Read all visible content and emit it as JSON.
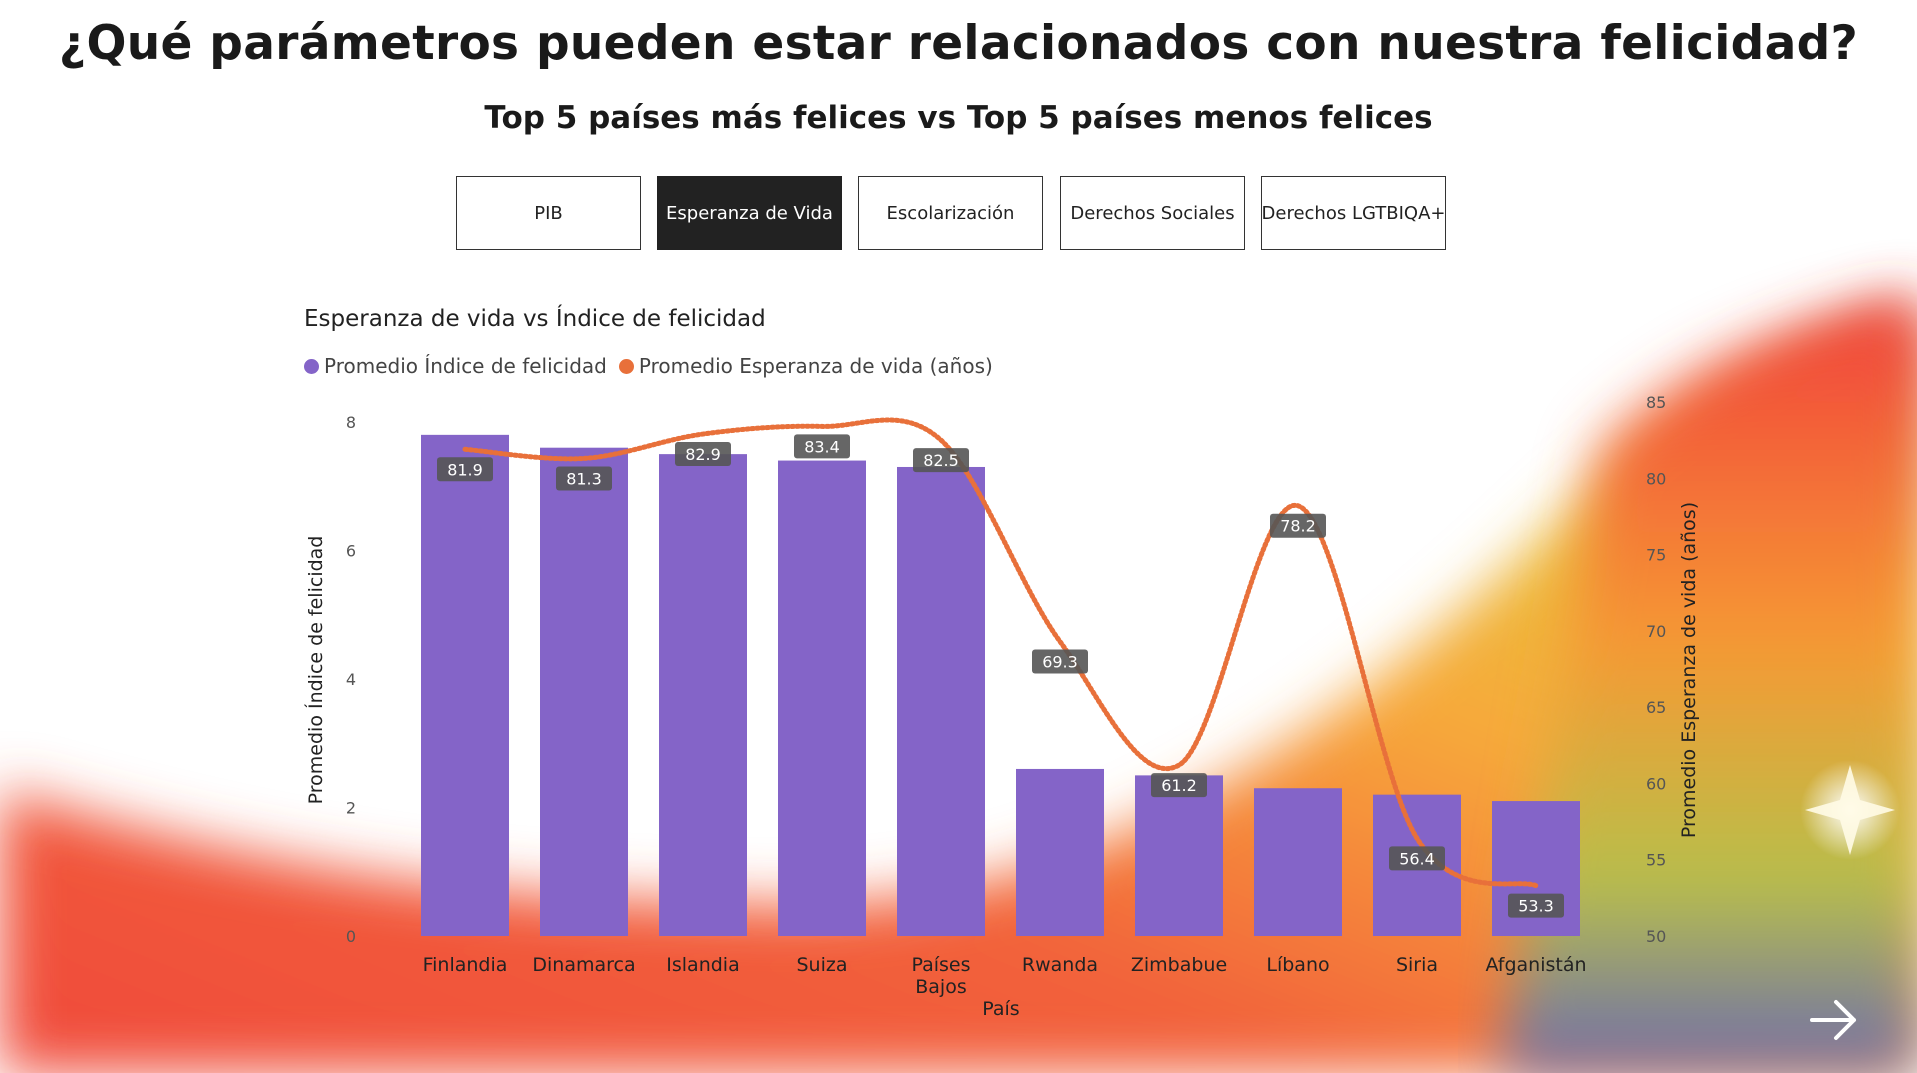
{
  "page": {
    "title": "¿Qué parámetros pueden estar relacionados con nuestra felicidad?",
    "subtitle": "Top 5 países más felices vs Top 5 países menos felices"
  },
  "tabs": [
    {
      "label": "PIB",
      "active": false
    },
    {
      "label": "Esperanza de Vida",
      "active": true
    },
    {
      "label": "Escolarización",
      "active": false
    },
    {
      "label": "Derechos Sociales",
      "active": false
    },
    {
      "label": "Derechos LGTBIQA+",
      "active": false
    }
  ],
  "next_button": {
    "icon": "arrow-right-icon"
  },
  "chart_data": {
    "type": "bar",
    "title": "Esperanza de vida vs Índice de felicidad",
    "xlabel": "País",
    "ylabel": "Promedio Índice de felicidad",
    "y2label": "Promedio Esperanza de vida (años)",
    "categories": [
      "Finlandia",
      "Dinamarca",
      "Islandia",
      "Suiza",
      "Países Bajos",
      "Rwanda",
      "Zimbabue",
      "Líbano",
      "Siria",
      "Afganistán"
    ],
    "series": [
      {
        "name": "Promedio Índice de felicidad",
        "type": "bar",
        "axis": "left",
        "color": "#8464c8",
        "values": [
          7.8,
          7.6,
          7.5,
          7.4,
          7.3,
          2.6,
          2.5,
          2.3,
          2.2,
          2.1
        ]
      },
      {
        "name": "Promedio Esperanza de vida (años)",
        "type": "line",
        "axis": "right",
        "color": "#e8703a",
        "values": [
          81.9,
          81.3,
          82.9,
          83.4,
          82.5,
          69.3,
          61.2,
          78.2,
          56.4,
          53.3
        ],
        "labels": [
          "81.9",
          "81.3",
          "82.9",
          "83.4",
          "82.5",
          "69.3",
          "61.2",
          "78.2",
          "56.4",
          "53.3"
        ]
      }
    ],
    "ylim": [
      0,
      8
    ],
    "yticks": [
      "0",
      "2",
      "4",
      "6",
      "8"
    ],
    "y2lim": [
      50,
      85
    ],
    "y2ticks": [
      "50",
      "55",
      "60",
      "65",
      "70",
      "75",
      "80",
      "85"
    ],
    "legend": "top-left",
    "grid": false
  }
}
